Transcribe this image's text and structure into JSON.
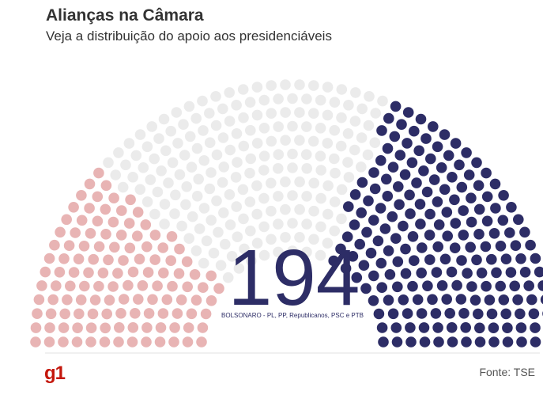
{
  "header": {
    "title": "Alianças na Câmara",
    "subtitle": "Veja a distribuição do apoio aos presidenciáveis"
  },
  "footer": {
    "logo_text": "g1",
    "source": "Fonte: TSE"
  },
  "chart_data": {
    "type": "parliament",
    "title": "Alianças na Câmara",
    "subtitle": "Veja a distribuição do apoio aos presidenciáveis",
    "total_seats": 513,
    "highlight": {
      "value": "194",
      "label": "BOLSONARO - PL, PP, Republicanos, PSC e PTB"
    },
    "series": [
      {
        "name": "",
        "seats": 122,
        "color": "#e8b4b4"
      },
      {
        "name": "",
        "seats": 197,
        "color": "#ebebeb"
      },
      {
        "name": "BOLSONARO - PL, PP, Republicanos, PSC e PTB",
        "seats": 194,
        "color": "#2d2d66"
      }
    ]
  }
}
